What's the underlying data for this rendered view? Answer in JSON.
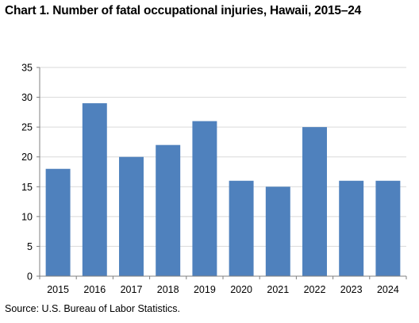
{
  "chart_data": {
    "type": "bar",
    "title": "Chart 1. Number of fatal occupational injuries,  Hawaii, 2015–24",
    "categories": [
      "2015",
      "2016",
      "2017",
      "2018",
      "2019",
      "2020",
      "2021",
      "2022",
      "2023",
      "2024"
    ],
    "values": [
      18,
      29,
      20,
      22,
      26,
      16,
      15,
      25,
      16,
      16
    ],
    "xlabel": "",
    "ylabel": "",
    "ylim": [
      0,
      35
    ],
    "yticks": [
      "0",
      "5",
      "10",
      "15",
      "20",
      "25",
      "30",
      "35"
    ],
    "grid": true,
    "legend": "none",
    "bar_color": "#4f81bd",
    "grid_color": "#d9d9d9",
    "source": "Source: U.S. Bureau  of Labor Statistics."
  }
}
